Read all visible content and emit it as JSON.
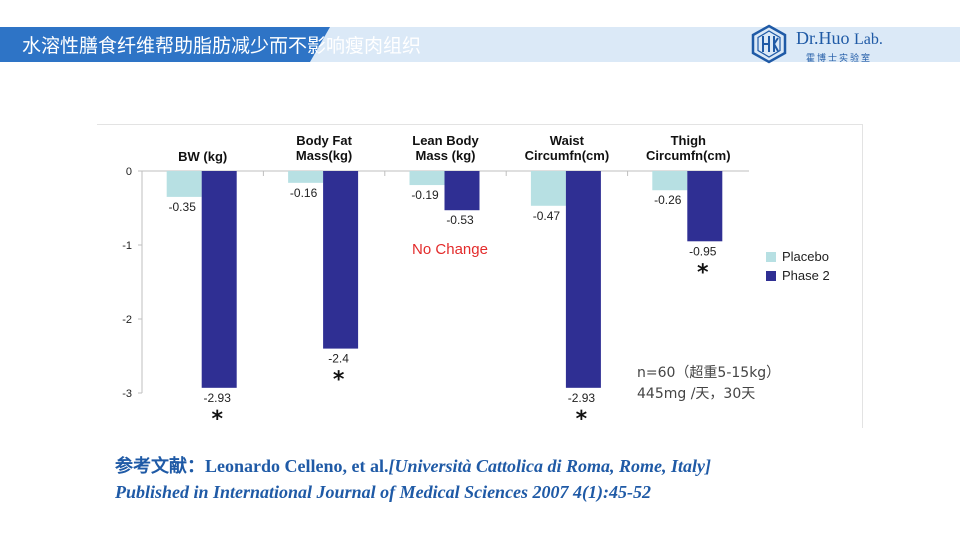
{
  "slide": {
    "title": "水溶性膳食纤维帮助脂肪减少而不影响瘦肉组织",
    "logo": {
      "brand": "Dr.Huo",
      "suffix": "Lab.",
      "subtitle": "霍博士实验室"
    },
    "reference": {
      "prefix": "参考文献：",
      "authors": "Leonardo Celleno, et al.",
      "affiliation": "[Università  Cattolica di Roma, Rome, Italy]",
      "published": "Published in International Journal of Medical Sciences  2007 4(1):45-52"
    }
  },
  "colors": {
    "banner": "#2e74c6",
    "placebo": "#b7e0e3",
    "phase2": "#2f2f93",
    "annotation_red": "#e32b2b",
    "reference_text": "#1f5aa6"
  },
  "chart_data": {
    "type": "bar",
    "categories": [
      [
        "BW (kg)"
      ],
      [
        "Body Fat",
        "Mass(kg)"
      ],
      [
        "Lean Body",
        "Mass (kg)"
      ],
      [
        "Waist",
        "Circumfn(cm)"
      ],
      [
        "Thigh",
        "Circumfn(cm)"
      ]
    ],
    "series": [
      {
        "name": "Placebo",
        "values": [
          -0.35,
          -0.16,
          -0.19,
          -0.47,
          -0.26
        ],
        "labels": [
          "-0.35",
          "-0.16",
          "-0.19",
          "-0.47",
          "-0.26"
        ]
      },
      {
        "name": "Phase 2",
        "values": [
          -2.93,
          -2.4,
          -0.53,
          -2.93,
          -0.95
        ],
        "labels": [
          "-2.93",
          "-2.4",
          "-0.53",
          "-2.93",
          "-0.95"
        ]
      }
    ],
    "significance": [
      true,
      true,
      false,
      true,
      true
    ],
    "significance_marker": "*",
    "ylim": [
      -3,
      0
    ],
    "yticks": [
      0,
      -1,
      -2,
      -3
    ],
    "legend_position": "right",
    "annotations": {
      "no_change": "No Change",
      "note_line1": "n=60（超重5-15kg）",
      "note_line2": "445mg /天，30天"
    }
  }
}
